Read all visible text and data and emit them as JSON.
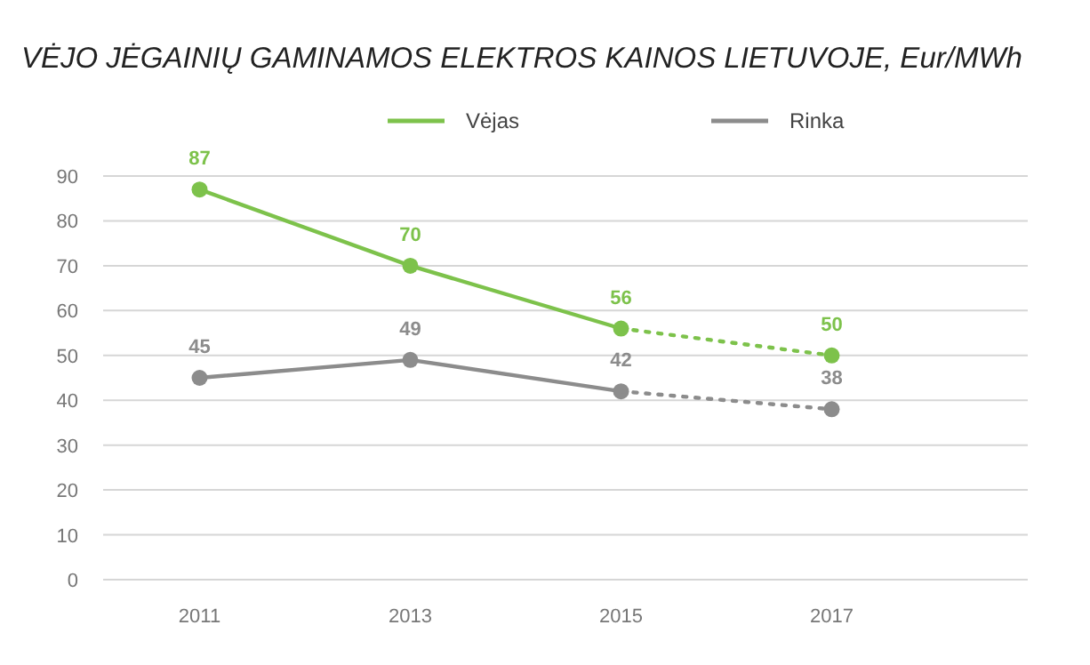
{
  "chart_data": {
    "type": "line",
    "title": "VĖJO JĖGAINIŲ GAMINAMOS ELEKTROS KAINOS LIETUVOJE, Eur/MWh",
    "categories": [
      "2011",
      "2013",
      "2015",
      "2017"
    ],
    "series": [
      {
        "name": "Vėjas",
        "color": "#7dc24b",
        "values": [
          87,
          70,
          56,
          null
        ],
        "value_labels": [
          "87",
          "70",
          "56",
          null
        ],
        "line_style": "solid"
      },
      {
        "color": "#7dc24b",
        "values": [
          null,
          null,
          56,
          50
        ],
        "value_labels": [
          null,
          null,
          null,
          "50"
        ],
        "line_style": "dotted"
      },
      {
        "name": "Rinka",
        "color": "#8c8c8c",
        "values": [
          45,
          49,
          42,
          null
        ],
        "value_labels": [
          "45",
          "49",
          "42",
          null
        ],
        "line_style": "solid"
      },
      {
        "color": "#8c8c8c",
        "values": [
          null,
          null,
          42,
          38
        ],
        "value_labels": [
          null,
          null,
          null,
          "38"
        ],
        "line_style": "dotted"
      }
    ],
    "ylim": [
      0,
      90
    ],
    "yticks": [
      0,
      10,
      20,
      30,
      40,
      50,
      60,
      70,
      80,
      90
    ],
    "grid": "y",
    "legend": "top",
    "marker": "circle"
  }
}
